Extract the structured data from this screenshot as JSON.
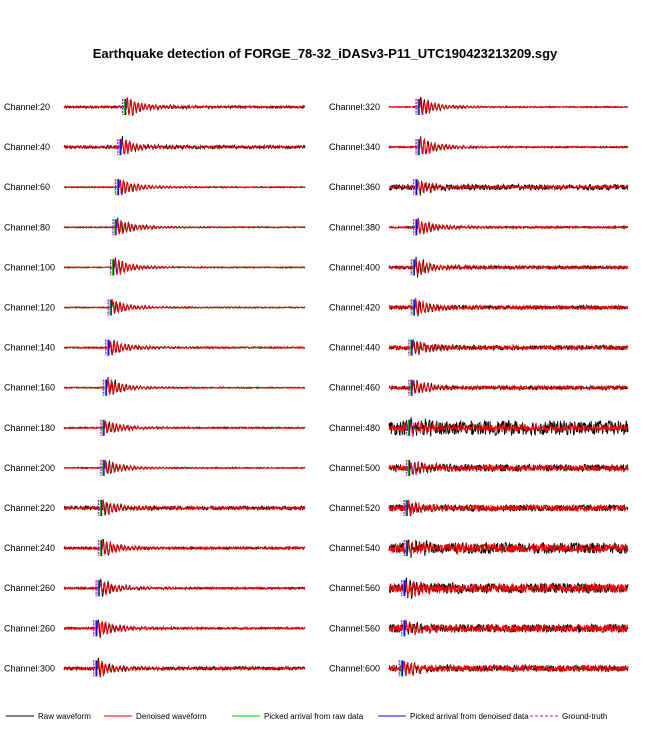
{
  "title": "Earthquake detection of FORGE_78-32_iDASv3-P11_UTC190423213209.sgy",
  "legend": [
    {
      "label": "Raw waveform",
      "color": "#000000",
      "style": "solid"
    },
    {
      "label": "Denoised waveform",
      "color": "#ff0000",
      "style": "solid"
    },
    {
      "label": "Picked arrival from raw data",
      "color": "#00cc00",
      "style": "solid"
    },
    {
      "label": "Picked arrival from denoised data",
      "color": "#0000ff",
      "style": "solid"
    },
    {
      "label": "Ground-truth",
      "color": "#cc00cc",
      "style": "dashed"
    }
  ],
  "chart_data": {
    "type": "line",
    "title": "Earthquake detection of FORGE_78-32_iDASv3-P11_UTC190423213209.sgy",
    "series_names": [
      "Raw waveform",
      "Denoised waveform",
      "Picked arrival from raw data",
      "Picked arrival from denoised data",
      "Ground-truth"
    ],
    "colors": {
      "raw": "#000000",
      "denoised": "#ff0000",
      "pick_raw": "#00cc00",
      "pick_denoised": "#0000ff",
      "ground_truth": "#cc00cc"
    },
    "axes_visible": false,
    "legend_position": "bottom",
    "columns": [
      {
        "channels": [
          {
            "label": "Channel:20",
            "arrival": 0.26,
            "raw_noise": 0.12,
            "den_noise": 0.1,
            "event_amp": 0.9
          },
          {
            "label": "Channel:40",
            "arrival": 0.24,
            "raw_noise": 0.18,
            "den_noise": 0.1,
            "event_amp": 0.8
          },
          {
            "label": "Channel:60",
            "arrival": 0.23,
            "raw_noise": 0.06,
            "den_noise": 0.06,
            "event_amp": 0.8
          },
          {
            "label": "Channel:80",
            "arrival": 0.22,
            "raw_noise": 0.06,
            "den_noise": 0.06,
            "event_amp": 0.8
          },
          {
            "label": "Channel:100",
            "arrival": 0.21,
            "raw_noise": 0.06,
            "den_noise": 0.06,
            "event_amp": 0.8
          },
          {
            "label": "Channel:120",
            "arrival": 0.2,
            "raw_noise": 0.06,
            "den_noise": 0.06,
            "event_amp": 0.7
          },
          {
            "label": "Channel:140",
            "arrival": 0.19,
            "raw_noise": 0.08,
            "den_noise": 0.08,
            "event_amp": 0.8
          },
          {
            "label": "Channel:160",
            "arrival": 0.18,
            "raw_noise": 0.06,
            "den_noise": 0.06,
            "event_amp": 0.9
          },
          {
            "label": "Channel:180",
            "arrival": 0.17,
            "raw_noise": 0.08,
            "den_noise": 0.08,
            "event_amp": 0.7
          },
          {
            "label": "Channel:200",
            "arrival": 0.17,
            "raw_noise": 0.06,
            "den_noise": 0.06,
            "event_amp": 0.8
          },
          {
            "label": "Channel:220",
            "arrival": 0.16,
            "raw_noise": 0.2,
            "den_noise": 0.14,
            "event_amp": 0.7
          },
          {
            "label": "Channel:240",
            "arrival": 0.16,
            "raw_noise": 0.12,
            "den_noise": 0.14,
            "event_amp": 0.8
          },
          {
            "label": "Channel:260",
            "arrival": 0.15,
            "raw_noise": 0.1,
            "den_noise": 0.1,
            "event_amp": 0.8
          },
          {
            "label": "Channel:260",
            "arrival": 0.14,
            "raw_noise": 0.1,
            "den_noise": 0.1,
            "event_amp": 0.9
          },
          {
            "label": "Channel:300",
            "arrival": 0.14,
            "raw_noise": 0.18,
            "den_noise": 0.12,
            "event_amp": 0.8
          }
        ]
      },
      {
        "channels": [
          {
            "label": "Channel:320",
            "arrival": 0.13,
            "raw_noise": 0.06,
            "den_noise": 0.06,
            "event_amp": 0.9
          },
          {
            "label": "Channel:340",
            "arrival": 0.13,
            "raw_noise": 0.08,
            "den_noise": 0.08,
            "event_amp": 0.9
          },
          {
            "label": "Channel:360",
            "arrival": 0.12,
            "raw_noise": 0.3,
            "den_noise": 0.14,
            "event_amp": 0.6
          },
          {
            "label": "Channel:380",
            "arrival": 0.12,
            "raw_noise": 0.1,
            "den_noise": 0.1,
            "event_amp": 0.8
          },
          {
            "label": "Channel:400",
            "arrival": 0.11,
            "raw_noise": 0.16,
            "den_noise": 0.16,
            "event_amp": 0.9
          },
          {
            "label": "Channel:420",
            "arrival": 0.11,
            "raw_noise": 0.2,
            "den_noise": 0.2,
            "event_amp": 0.8
          },
          {
            "label": "Channel:440",
            "arrival": 0.1,
            "raw_noise": 0.24,
            "den_noise": 0.2,
            "event_amp": 0.7
          },
          {
            "label": "Channel:460",
            "arrival": 0.1,
            "raw_noise": 0.2,
            "den_noise": 0.18,
            "event_amp": 0.7
          },
          {
            "label": "Channel:480",
            "arrival": 0.09,
            "raw_noise": 0.8,
            "den_noise": 0.35,
            "event_amp": 0.6
          },
          {
            "label": "Channel:500",
            "arrival": 0.09,
            "raw_noise": 0.4,
            "den_noise": 0.3,
            "event_amp": 0.6
          },
          {
            "label": "Channel:520",
            "arrival": 0.08,
            "raw_noise": 0.35,
            "den_noise": 0.35,
            "event_amp": 0.6
          },
          {
            "label": "Channel:540",
            "arrival": 0.08,
            "raw_noise": 0.6,
            "den_noise": 0.45,
            "event_amp": 0.6
          },
          {
            "label": "Channel:560",
            "arrival": 0.07,
            "raw_noise": 0.55,
            "den_noise": 0.5,
            "event_amp": 0.7
          },
          {
            "label": "Channel:560",
            "arrival": 0.07,
            "raw_noise": 0.45,
            "den_noise": 0.4,
            "event_amp": 0.6
          },
          {
            "label": "Channel:600",
            "arrival": 0.06,
            "raw_noise": 0.35,
            "den_noise": 0.35,
            "event_amp": 0.7
          }
        ]
      }
    ]
  }
}
